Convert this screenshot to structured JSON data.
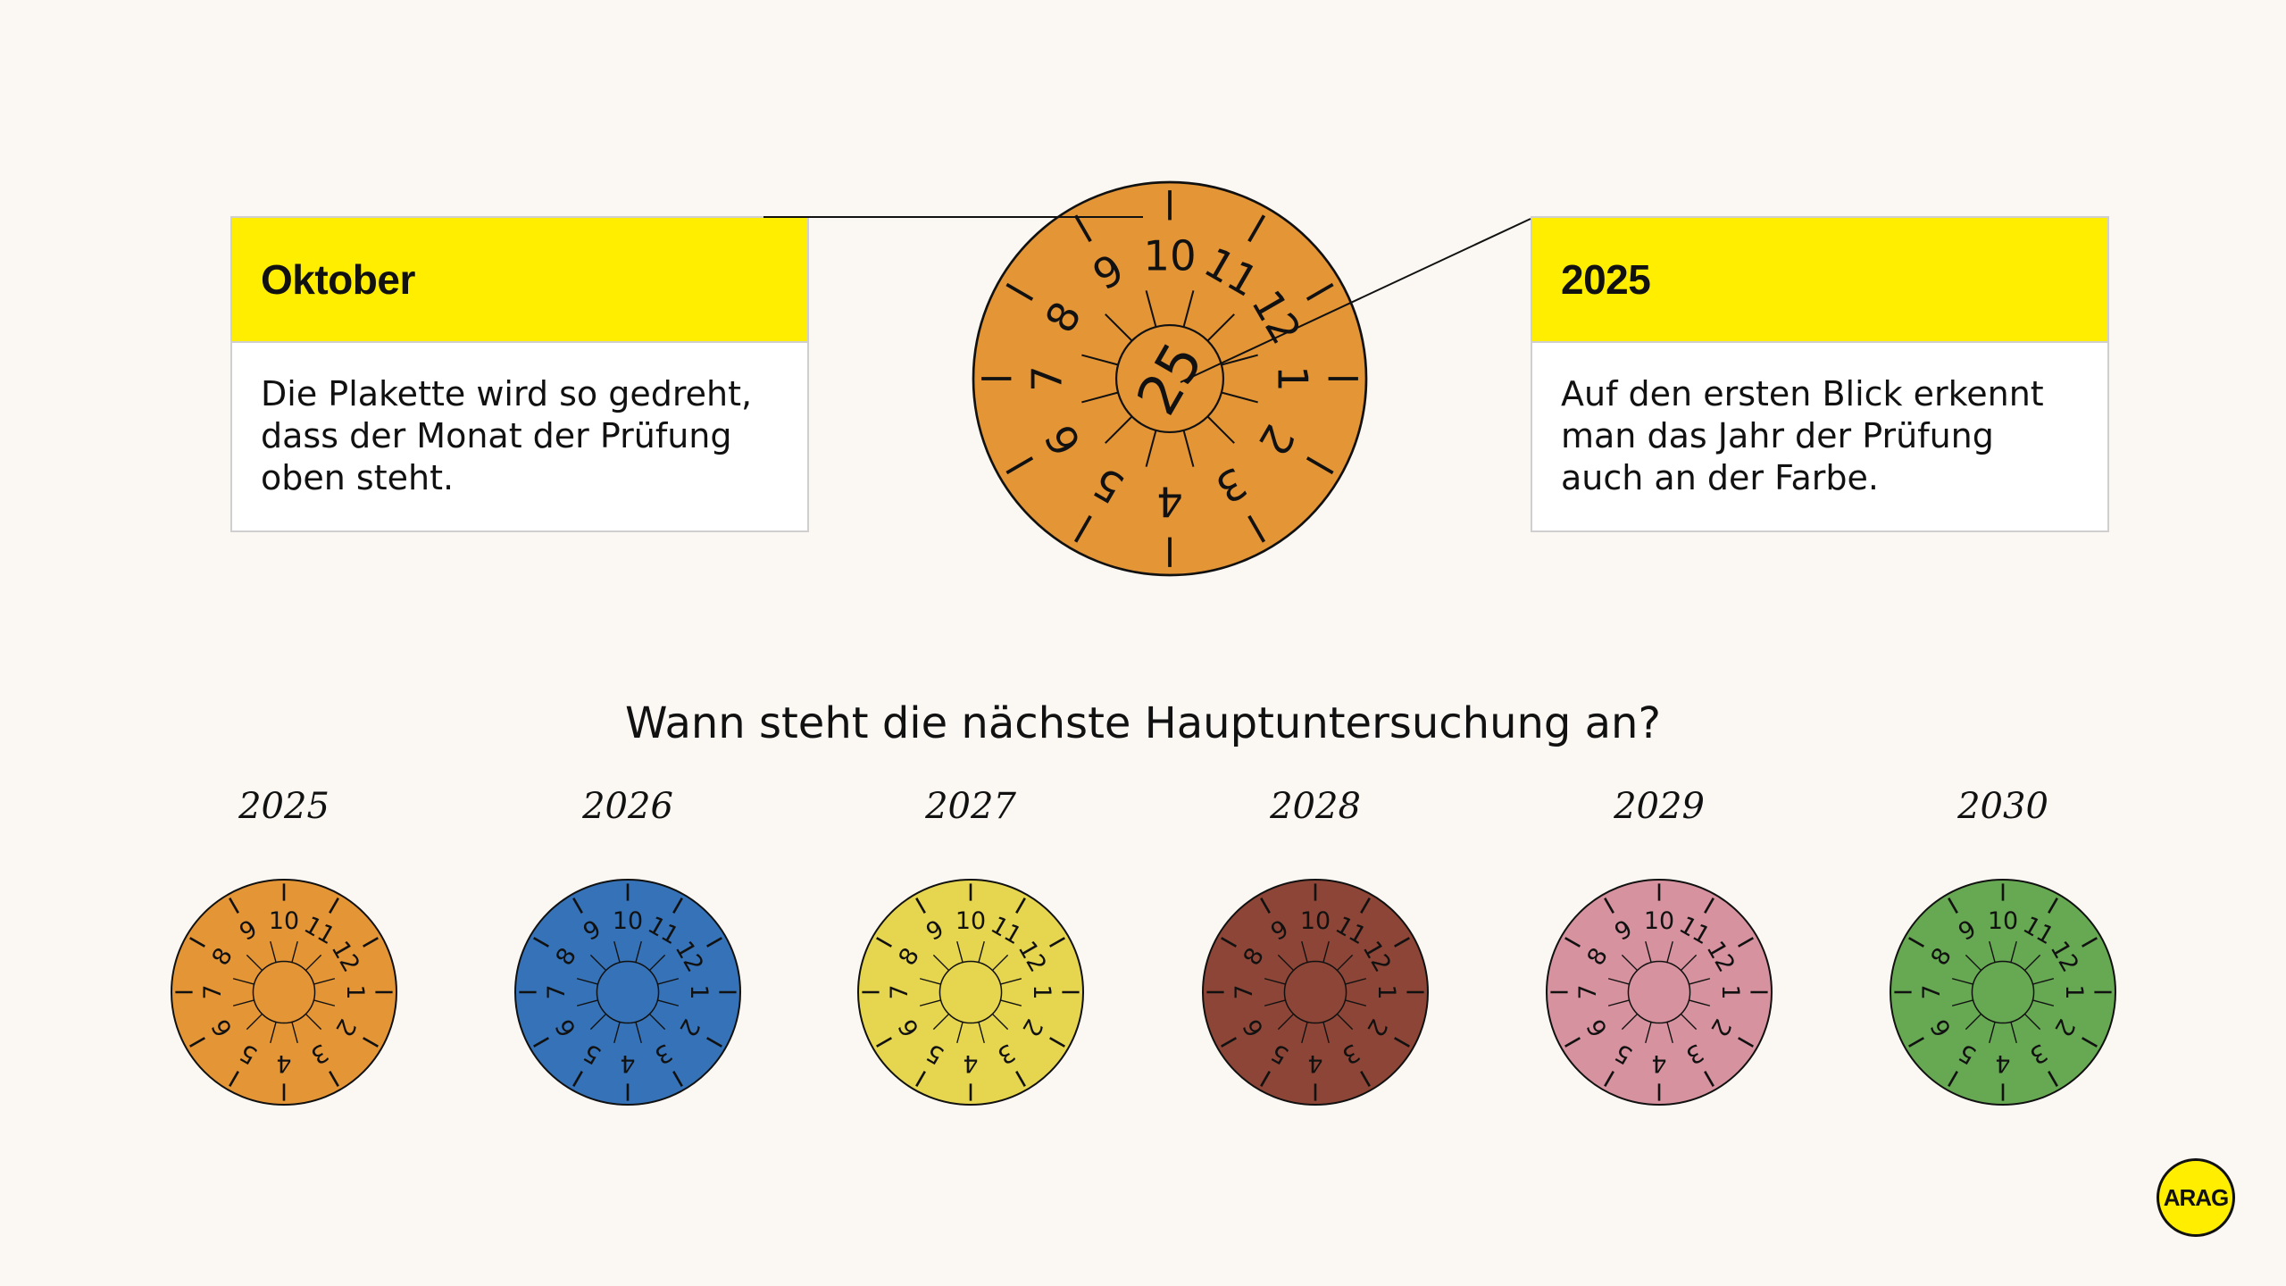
{
  "box_left": {
    "title": "Oktober",
    "text": "Die Plakette wird so gedreht, dass der Monat der Prüfung oben steht."
  },
  "box_right": {
    "title": "2025",
    "text": "Auf den ersten Blick erkennt man das Jahr der Prüfung auch an der Farbe."
  },
  "main_sticker": {
    "year": "25",
    "color": "#e49536",
    "top_month": 10
  },
  "months": [
    "1",
    "2",
    "3",
    "4",
    "5",
    "6",
    "7",
    "8",
    "9",
    "10",
    "11",
    "12"
  ],
  "question": "Wann steht die nächste Hauptuntersuchung an?",
  "stickers": [
    {
      "year": "2025",
      "color": "#e49536"
    },
    {
      "year": "2026",
      "color": "#3572b7"
    },
    {
      "year": "2027",
      "color": "#e6d64f"
    },
    {
      "year": "2028",
      "color": "#8c4536"
    },
    {
      "year": "2029",
      "color": "#d6929e"
    },
    {
      "year": "2030",
      "color": "#67a853"
    }
  ],
  "colors": {
    "highlight": "#ffee00",
    "background": "#fbf8f3"
  },
  "logo": "ARAG"
}
